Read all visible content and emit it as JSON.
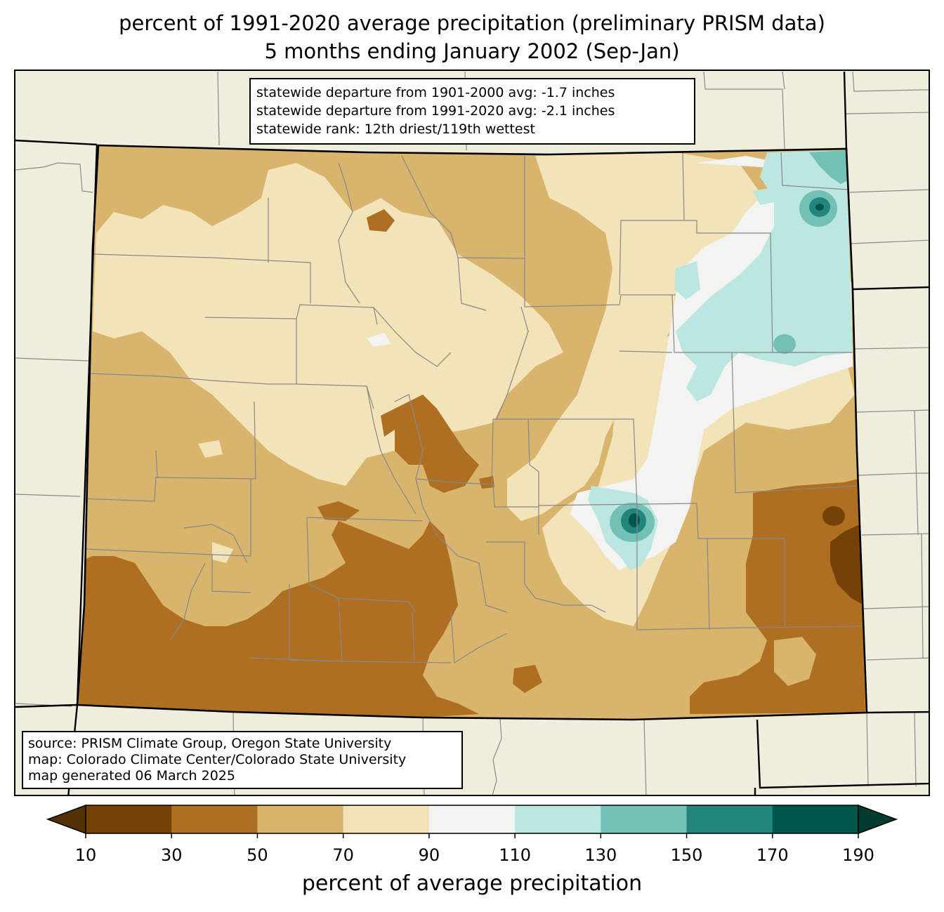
{
  "title": {
    "line1": "percent of 1991-2020 average precipitation (preliminary PRISM data)",
    "line2": "5 months ending January 2002 (Sep-Jan)"
  },
  "stats": {
    "departure_1901_2000": "statewide departure from 1901-2000 avg: -1.7 inches",
    "departure_1991_2020": "statewide departure from 1991-2020 avg: -2.1 inches",
    "rank": "statewide rank: 12th driest/119th wettest"
  },
  "source": {
    "line1": "source: PRISM Climate Group, Oregon State University",
    "line2": "map: Colorado Climate Center/Colorado State University",
    "line3": "map generated 06 March 2025"
  },
  "colorbar": {
    "label": "percent of average precipitation",
    "ticks": [
      "10",
      "30",
      "50",
      "70",
      "90",
      "110",
      "130",
      "150",
      "170",
      "190"
    ],
    "under_color": "#543005",
    "over_color": "#003c30",
    "bins": [
      {
        "range": "10-30",
        "color": "#744207"
      },
      {
        "range": "30-50",
        "color": "#ae6f21"
      },
      {
        "range": "50-70",
        "color": "#d8b46c"
      },
      {
        "range": "70-90",
        "color": "#f3e3b9"
      },
      {
        "range": "90-110",
        "color": "#f3f4f2"
      },
      {
        "range": "110-130",
        "color": "#bce6e0"
      },
      {
        "range": "130-150",
        "color": "#72c1b4"
      },
      {
        "range": "150-170",
        "color": "#22867c"
      },
      {
        "range": "170-190",
        "color": "#01564b"
      }
    ]
  },
  "colors": {
    "background_land": "#efeddb",
    "county_lines": "#888888",
    "state_border": "#000000"
  }
}
